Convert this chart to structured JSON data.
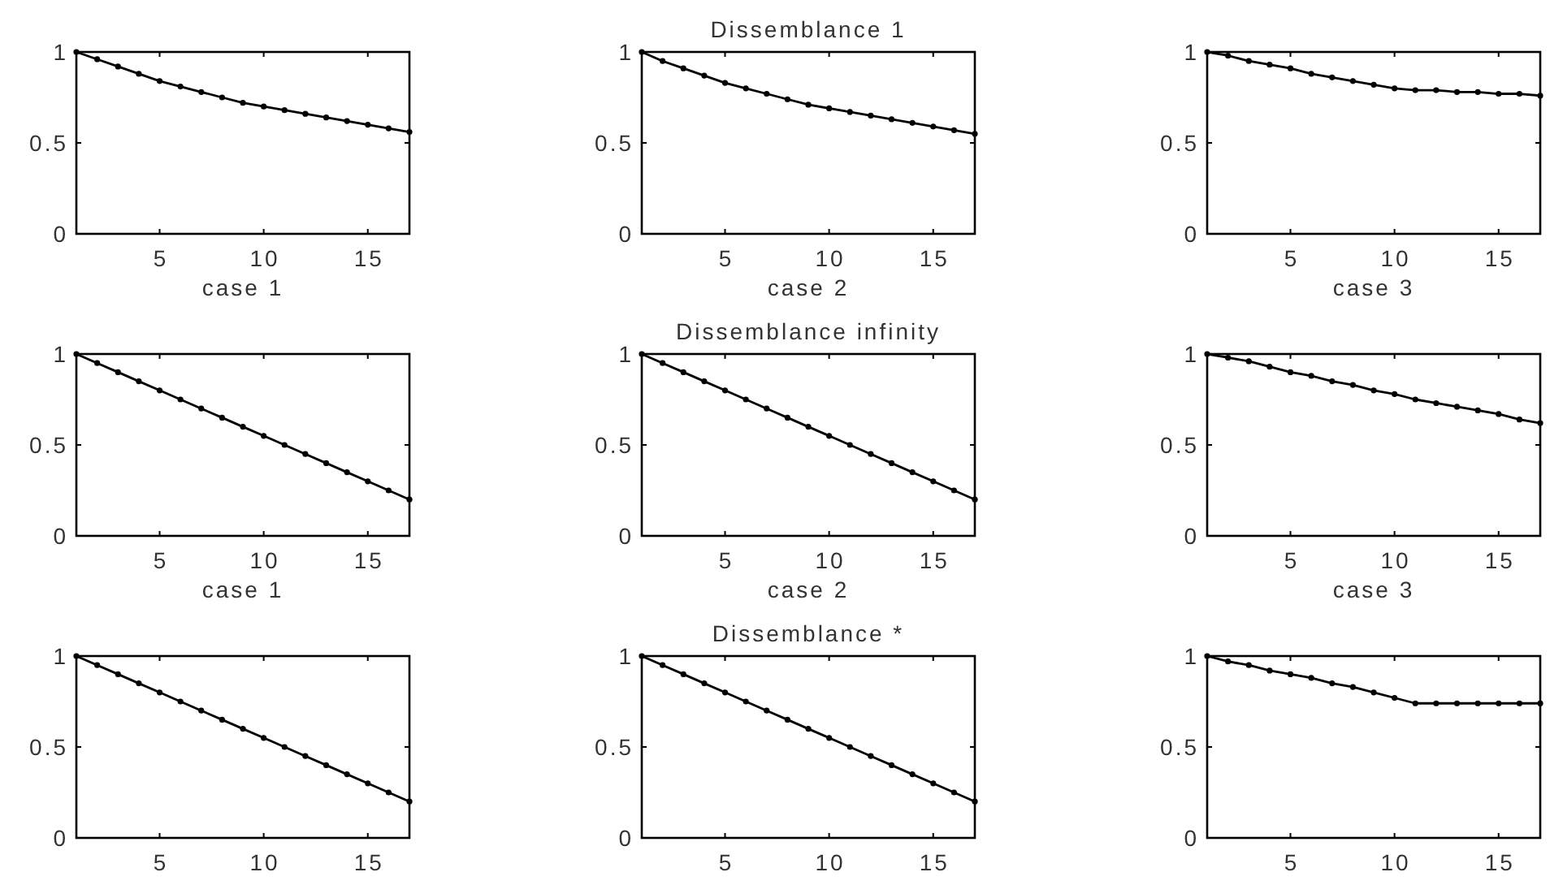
{
  "chart_data": [
    {
      "type": "line",
      "xlabel": "case 1",
      "x": [
        1,
        2,
        3,
        4,
        5,
        6,
        7,
        8,
        9,
        10,
        11,
        12,
        13,
        14,
        15,
        16,
        17
      ],
      "values": [
        1.0,
        0.96,
        0.92,
        0.88,
        0.84,
        0.81,
        0.78,
        0.75,
        0.72,
        0.7,
        0.68,
        0.66,
        0.64,
        0.62,
        0.6,
        0.58,
        0.56
      ],
      "color": "#000000",
      "xlim": [
        1,
        17
      ],
      "ylim": [
        0,
        1
      ],
      "xticks": [
        5,
        10,
        15
      ],
      "yticks": [
        0,
        0.5,
        1
      ],
      "marker": "circle",
      "line_style": "solid"
    },
    {
      "type": "line",
      "title": "Dissemblance 1",
      "xlabel": "case 2",
      "x": [
        1,
        2,
        3,
        4,
        5,
        6,
        7,
        8,
        9,
        10,
        11,
        12,
        13,
        14,
        15,
        16,
        17
      ],
      "values": [
        1.0,
        0.95,
        0.91,
        0.87,
        0.83,
        0.8,
        0.77,
        0.74,
        0.71,
        0.69,
        0.67,
        0.65,
        0.63,
        0.61,
        0.59,
        0.57,
        0.55
      ],
      "color": "#000000",
      "xlim": [
        1,
        17
      ],
      "ylim": [
        0,
        1
      ],
      "xticks": [
        5,
        10,
        15
      ],
      "yticks": [
        0,
        0.5,
        1
      ],
      "marker": "circle",
      "line_style": "solid"
    },
    {
      "type": "line",
      "xlabel": "case 3",
      "x": [
        1,
        2,
        3,
        4,
        5,
        6,
        7,
        8,
        9,
        10,
        11,
        12,
        13,
        14,
        15,
        16,
        17
      ],
      "values": [
        1.0,
        0.98,
        0.95,
        0.93,
        0.91,
        0.88,
        0.86,
        0.84,
        0.82,
        0.8,
        0.79,
        0.79,
        0.78,
        0.78,
        0.77,
        0.77,
        0.76
      ],
      "color": "#000000",
      "xlim": [
        1,
        17
      ],
      "ylim": [
        0,
        1
      ],
      "xticks": [
        5,
        10,
        15
      ],
      "yticks": [
        0,
        0.5,
        1
      ],
      "marker": "circle",
      "line_style": "solid"
    },
    {
      "type": "line",
      "xlabel": "case 1",
      "x": [
        1,
        2,
        3,
        4,
        5,
        6,
        7,
        8,
        9,
        10,
        11,
        12,
        13,
        14,
        15,
        16,
        17
      ],
      "values": [
        1.0,
        0.95,
        0.9,
        0.85,
        0.8,
        0.75,
        0.7,
        0.65,
        0.6,
        0.55,
        0.5,
        0.45,
        0.4,
        0.35,
        0.3,
        0.25,
        0.2
      ],
      "color": "#000000",
      "xlim": [
        1,
        17
      ],
      "ylim": [
        0,
        1
      ],
      "xticks": [
        5,
        10,
        15
      ],
      "yticks": [
        0,
        0.5,
        1
      ],
      "marker": "circle",
      "line_style": "solid"
    },
    {
      "type": "line",
      "title": "Dissemblance infinity",
      "xlabel": "case 2",
      "x": [
        1,
        2,
        3,
        4,
        5,
        6,
        7,
        8,
        9,
        10,
        11,
        12,
        13,
        14,
        15,
        16,
        17
      ],
      "values": [
        1.0,
        0.95,
        0.9,
        0.85,
        0.8,
        0.75,
        0.7,
        0.65,
        0.6,
        0.55,
        0.5,
        0.45,
        0.4,
        0.35,
        0.3,
        0.25,
        0.2
      ],
      "color": "#000000",
      "xlim": [
        1,
        17
      ],
      "ylim": [
        0,
        1
      ],
      "xticks": [
        5,
        10,
        15
      ],
      "yticks": [
        0,
        0.5,
        1
      ],
      "marker": "circle",
      "line_style": "solid"
    },
    {
      "type": "line",
      "xlabel": "case 3",
      "x": [
        1,
        2,
        3,
        4,
        5,
        6,
        7,
        8,
        9,
        10,
        11,
        12,
        13,
        14,
        15,
        16,
        17
      ],
      "values": [
        1.0,
        0.98,
        0.96,
        0.93,
        0.9,
        0.88,
        0.85,
        0.83,
        0.8,
        0.78,
        0.75,
        0.73,
        0.71,
        0.69,
        0.67,
        0.64,
        0.62
      ],
      "color": "#000000",
      "xlim": [
        1,
        17
      ],
      "ylim": [
        0,
        1
      ],
      "xticks": [
        5,
        10,
        15
      ],
      "yticks": [
        0,
        0.5,
        1
      ],
      "marker": "circle",
      "line_style": "solid"
    },
    {
      "type": "line",
      "x": [
        1,
        2,
        3,
        4,
        5,
        6,
        7,
        8,
        9,
        10,
        11,
        12,
        13,
        14,
        15,
        16,
        17
      ],
      "values": [
        1.0,
        0.95,
        0.9,
        0.85,
        0.8,
        0.75,
        0.7,
        0.65,
        0.6,
        0.55,
        0.5,
        0.45,
        0.4,
        0.35,
        0.3,
        0.25,
        0.2
      ],
      "color": "#000000",
      "xlim": [
        1,
        17
      ],
      "ylim": [
        0,
        1
      ],
      "xticks": [
        5,
        10,
        15
      ],
      "yticks": [
        0,
        0.5,
        1
      ],
      "marker": "circle",
      "line_style": "solid"
    },
    {
      "type": "line",
      "title": "Dissemblance *",
      "x": [
        1,
        2,
        3,
        4,
        5,
        6,
        7,
        8,
        9,
        10,
        11,
        12,
        13,
        14,
        15,
        16,
        17
      ],
      "values": [
        1.0,
        0.95,
        0.9,
        0.85,
        0.8,
        0.75,
        0.7,
        0.65,
        0.6,
        0.55,
        0.5,
        0.45,
        0.4,
        0.35,
        0.3,
        0.25,
        0.2
      ],
      "color": "#000000",
      "xlim": [
        1,
        17
      ],
      "ylim": [
        0,
        1
      ],
      "xticks": [
        5,
        10,
        15
      ],
      "yticks": [
        0,
        0.5,
        1
      ],
      "marker": "circle",
      "line_style": "solid"
    },
    {
      "type": "line",
      "x": [
        1,
        2,
        3,
        4,
        5,
        6,
        7,
        8,
        9,
        10,
        11,
        12,
        13,
        14,
        15,
        16,
        17
      ],
      "values": [
        1.0,
        0.97,
        0.95,
        0.92,
        0.9,
        0.88,
        0.85,
        0.83,
        0.8,
        0.77,
        0.74,
        0.74,
        0.74,
        0.74,
        0.74,
        0.74,
        0.74
      ],
      "color": "#000000",
      "xlim": [
        1,
        17
      ],
      "ylim": [
        0,
        1
      ],
      "xticks": [
        5,
        10,
        15
      ],
      "yticks": [
        0,
        0.5,
        1
      ],
      "marker": "circle",
      "line_style": "solid"
    }
  ]
}
